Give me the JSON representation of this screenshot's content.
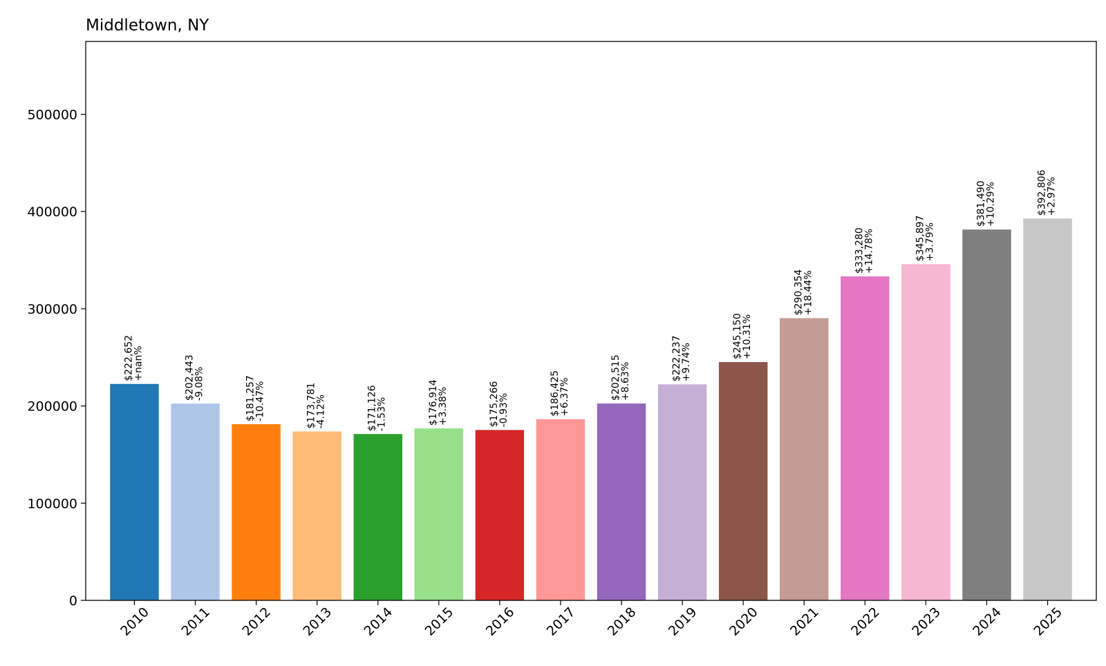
{
  "chart_data": {
    "type": "bar",
    "title": "Middletown, NY",
    "xlabel": "",
    "ylabel": "",
    "ylim": [
      0,
      575000
    ],
    "yticks": [
      0,
      100000,
      200000,
      300000,
      400000,
      500000
    ],
    "grid": false,
    "legend": "none",
    "categories": [
      "2010",
      "2011",
      "2012",
      "2013",
      "2014",
      "2015",
      "2016",
      "2017",
      "2018",
      "2019",
      "2020",
      "2021",
      "2022",
      "2023",
      "2024",
      "2025"
    ],
    "values": [
      222652,
      202443,
      181257,
      173781,
      171126,
      176914,
      175266,
      186425,
      202515,
      222237,
      245150,
      290354,
      333280,
      345897,
      381490,
      392806
    ],
    "value_labels": [
      "$222,652",
      "$202,443",
      "$181,257",
      "$173,781",
      "$171,126",
      "$176,914",
      "$175,266",
      "$186,425",
      "$202,515",
      "$222,237",
      "$245,150",
      "$290,354",
      "$333,280",
      "$345,897",
      "$381,490",
      "$392,806"
    ],
    "change_labels": [
      "+nan%",
      "-9.08%",
      "-10.47%",
      "-4.12%",
      "-1.53%",
      "+3.38%",
      "-0.93%",
      "+6.37%",
      "+8.63%",
      "+9.74%",
      "+10.31%",
      "+18.44%",
      "+14.78%",
      "+3.79%",
      "+10.29%",
      "+2.97%"
    ],
    "colors": [
      "#1f77b4",
      "#aec7e8",
      "#ff7f0e",
      "#ffbb78",
      "#2ca02c",
      "#98df8a",
      "#d62728",
      "#ff9896",
      "#9467bd",
      "#c5b0d5",
      "#8c564b",
      "#c49c94",
      "#e377c2",
      "#f7b6d2",
      "#7f7f7f",
      "#c7c7c7"
    ]
  }
}
